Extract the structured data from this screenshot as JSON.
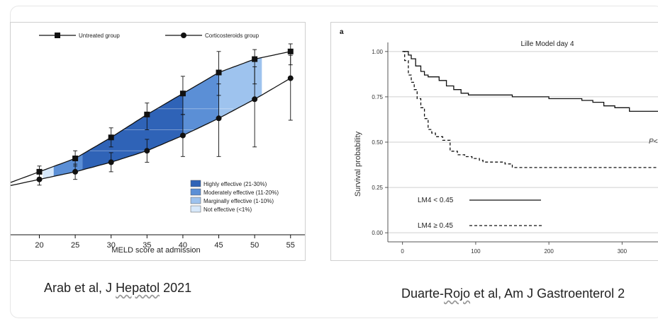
{
  "colors": {
    "highly": "#2f63b7",
    "moderately": "#5b8fd6",
    "marginally": "#9ec3ee",
    "not_effective": "#d7e8fa",
    "line": "#111111",
    "grid": "#cfcfcf"
  },
  "chart_data": [
    {
      "type": "line",
      "title": "",
      "xlabel": "MELD score at admission",
      "ylabel": "",
      "xlim": [
        16,
        57
      ],
      "ylim": [
        0,
        1
      ],
      "x_ticks": [
        20,
        25,
        30,
        35,
        40,
        45,
        50,
        55
      ],
      "x_tick_labels": [
        "20",
        "25",
        "30",
        "35",
        "40",
        "45",
        "50",
        "55"
      ],
      "series": [
        {
          "name": "Untreated group",
          "marker": "square",
          "x": [
            20,
            25,
            30,
            35,
            40,
            45,
            50,
            55
          ],
          "y": [
            0.33,
            0.4,
            0.51,
            0.63,
            0.74,
            0.85,
            0.92,
            0.96
          ],
          "err_low": [
            0.3,
            0.36,
            0.46,
            0.55,
            0.63,
            0.73,
            0.79,
            0.89
          ],
          "err_high": [
            0.36,
            0.44,
            0.56,
            0.69,
            0.83,
            0.96,
            0.97,
            1.0
          ]
        },
        {
          "name": "Corticosteroids group",
          "marker": "circle",
          "x": [
            20,
            25,
            30,
            35,
            40,
            45,
            50,
            55
          ],
          "y": [
            0.29,
            0.33,
            0.38,
            0.44,
            0.52,
            0.61,
            0.71,
            0.82
          ],
          "err_low": [
            0.26,
            0.29,
            0.33,
            0.38,
            0.41,
            0.41,
            0.46,
            0.6
          ],
          "err_high": [
            0.32,
            0.37,
            0.43,
            0.5,
            0.63,
            0.79,
            0.88,
            0.94
          ]
        }
      ],
      "bands": [
        {
          "name": "Highly effective (21-30%)",
          "color": "#2f63b7"
        },
        {
          "name": "Moderately effective (11-20%)",
          "color": "#5b8fd6"
        },
        {
          "name": "Marginally effective (1-10%)",
          "color": "#9ec3ee"
        },
        {
          "name": "Not effective (<1%)",
          "color": "#d7e8fa"
        }
      ],
      "legend": [
        "Untreated group",
        "Corticosteroids group"
      ],
      "legend_placement": "top"
    },
    {
      "type": "line",
      "panel_label": "a",
      "title": "Lille Model day 4",
      "xlabel": "",
      "ylabel": "Survival probability",
      "xlim": [
        -20,
        350
      ],
      "ylim": [
        -0.05,
        1.05
      ],
      "x_ticks": [
        0,
        100,
        200,
        300
      ],
      "x_tick_labels": [
        "0",
        "100",
        "200",
        "300"
      ],
      "y_ticks": [
        0.0,
        0.25,
        0.5,
        0.75,
        1.0
      ],
      "y_tick_labels": [
        "0.00",
        "0.25",
        "0.50",
        "0.75",
        "1.00"
      ],
      "grid": true,
      "series": [
        {
          "name": "LM4 < 0.45",
          "style": "solid",
          "x": [
            0,
            8,
            12,
            18,
            25,
            30,
            35,
            42,
            50,
            60,
            70,
            80,
            90,
            100,
            120,
            150,
            180,
            200,
            215,
            245,
            260,
            275,
            290,
            310,
            350
          ],
          "y": [
            1.0,
            0.98,
            0.96,
            0.92,
            0.89,
            0.87,
            0.86,
            0.86,
            0.84,
            0.81,
            0.79,
            0.77,
            0.76,
            0.76,
            0.76,
            0.75,
            0.75,
            0.74,
            0.74,
            0.73,
            0.72,
            0.7,
            0.69,
            0.67,
            0.67
          ]
        },
        {
          "name": "LM4 ≥ 0.45",
          "style": "dashed",
          "x": [
            0,
            3,
            8,
            12,
            16,
            20,
            25,
            30,
            35,
            40,
            45,
            55,
            65,
            75,
            85,
            95,
            105,
            110,
            120,
            130,
            140,
            150,
            200,
            350
          ],
          "y": [
            1.0,
            0.95,
            0.87,
            0.83,
            0.79,
            0.74,
            0.69,
            0.63,
            0.57,
            0.55,
            0.53,
            0.51,
            0.45,
            0.43,
            0.42,
            0.41,
            0.4,
            0.39,
            0.39,
            0.39,
            0.38,
            0.36,
            0.36,
            0.36
          ]
        }
      ],
      "legend": [
        "LM4 < 0.45",
        "LM4 ≥ 0.45"
      ],
      "legend_placement": "bottom-left",
      "annotation": "P<"
    }
  ],
  "captions": {
    "left": {
      "before": "Arab et al, J ",
      "underlined": "Hepatol",
      "after": " 2021"
    },
    "right": {
      "before": "Duarte-",
      "underlined": "Rojo",
      "after": " et al, Am J Gastroenterol 2"
    }
  }
}
